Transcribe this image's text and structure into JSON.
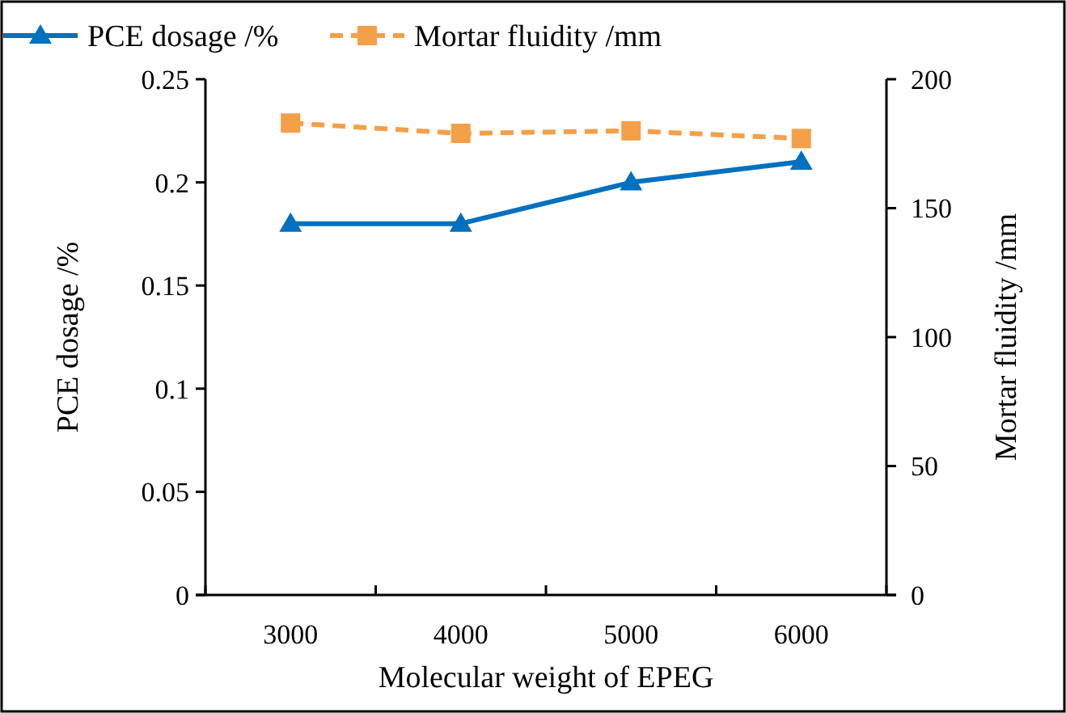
{
  "chart_data": {
    "type": "line",
    "xlabel": "Molecular weight of EPEG",
    "ylabel": "PCE dosage /%",
    "y2label": "Mortar fluidity /mm",
    "categories": [
      "3000",
      "4000",
      "5000",
      "6000"
    ],
    "series": [
      {
        "name": "PCE dosage /%",
        "color": "#0070c0",
        "values": [
          0.18,
          0.18,
          0.2,
          0.21
        ],
        "marker": "triangle",
        "line_style": "solid"
      },
      {
        "name": "Mortar fluidity /mm",
        "color": "#f4a048",
        "values": [
          183,
          179,
          180,
          177
        ],
        "axis": "y2",
        "marker": "square",
        "line_style": "dashed"
      }
    ],
    "ylim": [
      0,
      0.25
    ],
    "yticks": [
      0,
      0.05,
      0.1,
      0.15,
      0.2,
      0.25
    ],
    "y2lim": [
      0,
      200
    ],
    "y2ticks": [
      0,
      50,
      100,
      150,
      200
    ],
    "grid": false,
    "legend": "top"
  }
}
